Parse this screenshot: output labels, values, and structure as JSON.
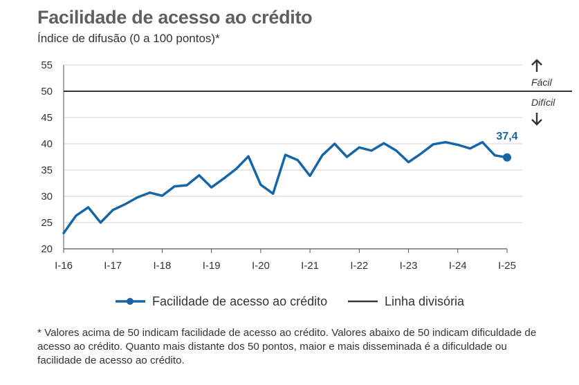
{
  "title": "Facilidade de acesso ao crédito",
  "subtitle": "Índice de difusão (0 a 100 pontos)*",
  "footnote": "* Valores acima de 50 indicam facilidade de acesso ao crédito. Valores abaixo de 50 indicam dificuldade de acesso ao crédito. Quanto mais distante dos 50 pontos, maior e mais disseminada é a dificuldade ou facilidade de acesso ao crédito.",
  "colors": {
    "series": "#1565a7",
    "divider": "#333333",
    "grid": "#d0d0d0",
    "axis": "#555555"
  },
  "chart_data": {
    "type": "line",
    "ylim": [
      20,
      55
    ],
    "yticks": [
      20,
      25,
      30,
      35,
      40,
      45,
      50,
      55
    ],
    "xtick_labels": [
      "I-16",
      "I-17",
      "I-18",
      "I-19",
      "I-20",
      "I-21",
      "I-22",
      "I-23",
      "I-24",
      "I-25"
    ],
    "xlabel": "",
    "ylabel": "",
    "grid": true,
    "series": [
      {
        "name": "Facilidade de acesso ao crédito",
        "values": [
          23.0,
          26.3,
          27.9,
          25.0,
          27.4,
          28.5,
          29.8,
          30.7,
          30.1,
          31.9,
          32.1,
          34.0,
          31.7,
          33.4,
          35.2,
          37.6,
          32.2,
          30.5,
          37.9,
          36.9,
          33.9,
          37.8,
          40.0,
          37.5,
          39.3,
          38.7,
          40.1,
          38.7,
          36.5,
          38.1,
          39.9,
          40.3,
          39.8,
          39.1,
          40.3,
          37.8,
          37.4
        ]
      }
    ],
    "reference_line": {
      "name": "Linha divisória",
      "value": 50
    },
    "end_label": "37,4",
    "region_labels": {
      "above": "Fácil",
      "below": "Difícil"
    },
    "legend_position": "bottom"
  }
}
